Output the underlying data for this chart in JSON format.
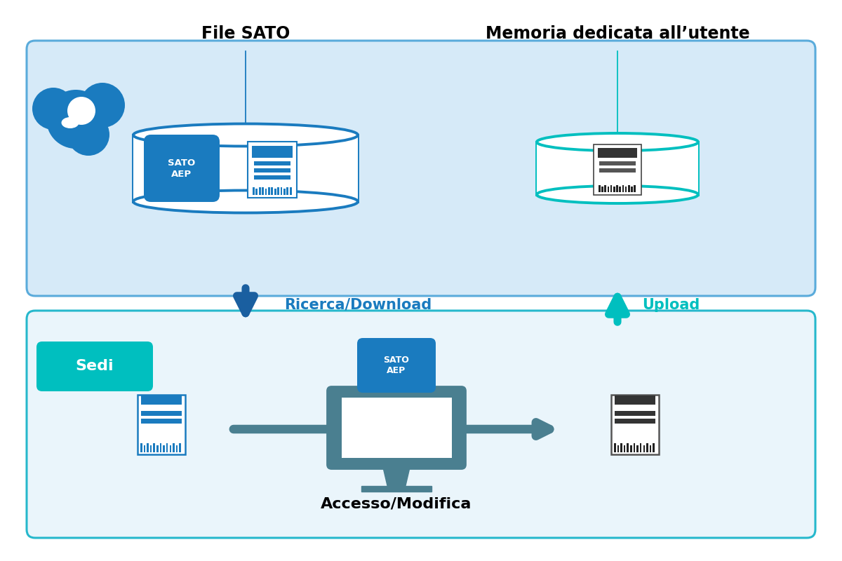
{
  "bg_color": "#ffffff",
  "top_box_color": "#d6eaf8",
  "top_box_border": "#5aabdb",
  "bottom_box_color": "#eaf5fb",
  "bottom_box_border": "#26b8cc",
  "sedi_color": "#00bfbf",
  "sedi_text": "Sedi",
  "db1_color": "#1a7bbf",
  "db2_color": "#00bfbf",
  "monitor_color": "#4a7f90",
  "arrow_down_color": "#1a5fa0",
  "arrow_up_color": "#00bfbf",
  "cloud_blue": "#1a7bbf",
  "label_file_sato": "File SATO",
  "label_memoria": "Memoria dedicata all’utente",
  "label_download": "Ricerca/Download",
  "label_upload": "Upload",
  "label_accesso": "Accesso/Modifica",
  "label_sato_aep": "SATO\nAEP",
  "download_color": "#1a7bbf",
  "upload_color": "#00bfbf",
  "annotation_color": "#1a7bbf",
  "annotation_color2": "#00bfbf"
}
